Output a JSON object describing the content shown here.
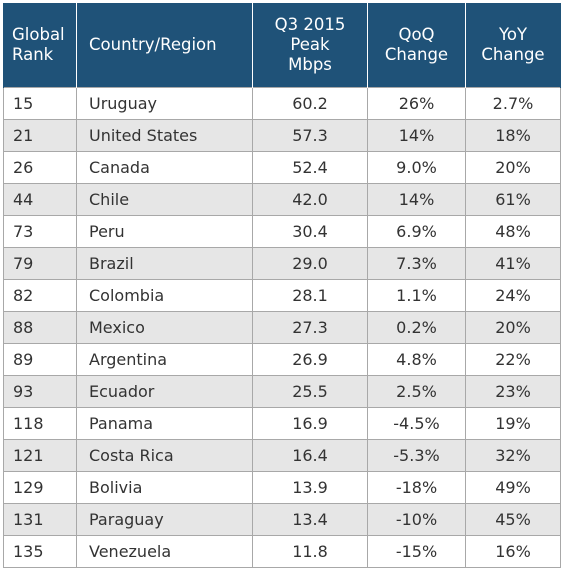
{
  "chart_data": {
    "type": "table",
    "columns": [
      {
        "key": "rank",
        "lines": [
          "Global",
          "Rank"
        ]
      },
      {
        "key": "country",
        "lines": [
          "Country/Region"
        ]
      },
      {
        "key": "peak",
        "lines": [
          "Q3 2015",
          "Peak",
          "Mbps"
        ]
      },
      {
        "key": "qoq",
        "lines": [
          "QoQ",
          "Change"
        ]
      },
      {
        "key": "yoy",
        "lines": [
          "YoY",
          "Change"
        ]
      }
    ],
    "rows": [
      {
        "rank": "15",
        "country": "Uruguay",
        "peak": "60.2",
        "qoq": "26%",
        "yoy": "2.7%"
      },
      {
        "rank": "21",
        "country": "United States",
        "peak": "57.3",
        "qoq": "14%",
        "yoy": "18%"
      },
      {
        "rank": "26",
        "country": "Canada",
        "peak": "52.4",
        "qoq": "9.0%",
        "yoy": "20%"
      },
      {
        "rank": "44",
        "country": "Chile",
        "peak": "42.0",
        "qoq": "14%",
        "yoy": "61%"
      },
      {
        "rank": "73",
        "country": "Peru",
        "peak": "30.4",
        "qoq": "6.9%",
        "yoy": "48%"
      },
      {
        "rank": "79",
        "country": "Brazil",
        "peak": "29.0",
        "qoq": "7.3%",
        "yoy": "41%"
      },
      {
        "rank": "82",
        "country": "Colombia",
        "peak": "28.1",
        "qoq": "1.1%",
        "yoy": "24%"
      },
      {
        "rank": "88",
        "country": "Mexico",
        "peak": "27.3",
        "qoq": "0.2%",
        "yoy": "20%"
      },
      {
        "rank": "89",
        "country": "Argentina",
        "peak": "26.9",
        "qoq": "4.8%",
        "yoy": "22%"
      },
      {
        "rank": "93",
        "country": "Ecuador",
        "peak": "25.5",
        "qoq": "2.5%",
        "yoy": "23%"
      },
      {
        "rank": "118",
        "country": "Panama",
        "peak": "16.9",
        "qoq": "-4.5%",
        "yoy": "19%"
      },
      {
        "rank": "121",
        "country": "Costa Rica",
        "peak": "16.4",
        "qoq": "-5.3%",
        "yoy": "32%"
      },
      {
        "rank": "129",
        "country": "Bolivia",
        "peak": "13.9",
        "qoq": "-18%",
        "yoy": "49%"
      },
      {
        "rank": "131",
        "country": "Paraguay",
        "peak": "13.4",
        "qoq": "-10%",
        "yoy": "45%"
      },
      {
        "rank": "135",
        "country": "Venezuela",
        "peak": "11.8",
        "qoq": "-15%",
        "yoy": "16%"
      }
    ]
  },
  "colors": {
    "header_bg": "#1f5278",
    "header_text": "#ffffff",
    "row_stripe": "#e6e6e6",
    "row_plain": "#ffffff",
    "grid": "#a8a8a8",
    "cell_text": "#333333"
  }
}
